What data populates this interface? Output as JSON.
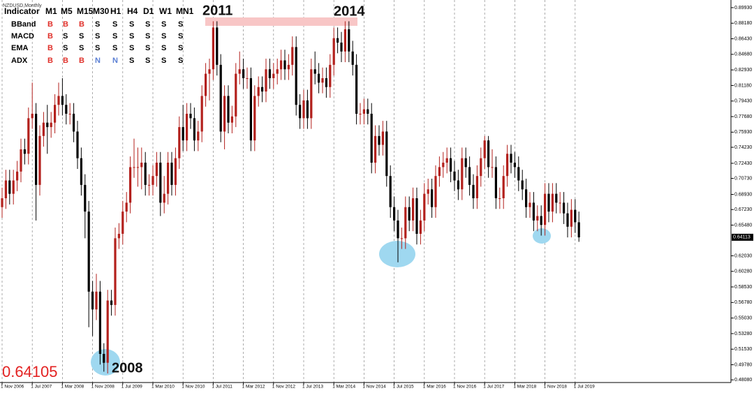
{
  "chart_data": {
    "type": "candlestick",
    "symbol": "NZDUSD,Monthly",
    "annotations": [
      "2011",
      "2014",
      "2008"
    ],
    "bid_label": "0.64105",
    "last_price": 0.64113,
    "up_color": "#b3201c",
    "down_color": "#000000",
    "grid": "vertical",
    "categories": [
      "1 Nov 2006",
      null,
      null,
      null,
      null,
      null,
      null,
      null,
      "1 Jul 2007",
      null,
      null,
      null,
      null,
      null,
      null,
      null,
      "1 Mar 2008",
      null,
      null,
      null,
      null,
      null,
      null,
      null,
      "1 Nov 2008",
      null,
      null,
      null,
      null,
      null,
      null,
      null,
      "1 Jul 2009",
      null,
      null,
      null,
      null,
      null,
      null,
      null,
      "1 Mar 2010",
      null,
      null,
      null,
      null,
      null,
      null,
      null,
      "1 Nov 2010",
      null,
      null,
      null,
      null,
      null,
      null,
      null,
      "1 Jul 2011",
      null,
      null,
      null,
      null,
      null,
      null,
      null,
      "1 Mar 2012",
      null,
      null,
      null,
      null,
      null,
      null,
      null,
      "1 Nov 2012",
      null,
      null,
      null,
      null,
      null,
      null,
      null,
      "1 Jul 2013",
      null,
      null,
      null,
      null,
      null,
      null,
      null,
      "1 Mar 2014",
      null,
      null,
      null,
      null,
      null,
      null,
      null,
      "1 Nov 2014",
      null,
      null,
      null,
      null,
      null,
      null,
      null,
      "1 Jul 2015",
      null,
      null,
      null,
      null,
      null,
      null,
      null,
      "1 Mar 2016",
      null,
      null,
      null,
      null,
      null,
      null,
      null,
      "1 Nov 2016",
      null,
      null,
      null,
      null,
      null,
      null,
      null,
      "1 Jul 2017",
      null,
      null,
      null,
      null,
      null,
      null,
      null,
      "1 Mar 2018",
      null,
      null,
      null,
      null,
      null,
      null,
      null,
      "1 Nov 2018",
      null,
      null,
      null,
      null,
      null,
      null,
      null,
      "1 Jul 2019",
      null
    ],
    "open": [
      0.675,
      0.685,
      0.705,
      0.69,
      0.705,
      0.715,
      0.74,
      0.735,
      0.775,
      0.78,
      0.7,
      0.755,
      0.77,
      0.765,
      0.77,
      0.79,
      0.8,
      0.79,
      0.78,
      0.78,
      0.76,
      0.73,
      0.7,
      0.67,
      0.58,
      0.56,
      0.58,
      0.51,
      0.5,
      0.57,
      0.565,
      0.64,
      0.645,
      0.67,
      0.68,
      0.72,
      0.72,
      0.72,
      0.725,
      0.7,
      0.7,
      0.71,
      0.725,
      0.68,
      0.69,
      0.725,
      0.7,
      0.73,
      0.765,
      0.75,
      0.78,
      0.775,
      0.75,
      0.76,
      0.8,
      0.825,
      0.83,
      0.877,
      0.835,
      0.76,
      0.8,
      0.77,
      0.777,
      0.825,
      0.83,
      0.82,
      0.82,
      0.75,
      0.8,
      0.81,
      0.805,
      0.83,
      0.82,
      0.825,
      0.83,
      0.84,
      0.83,
      0.835,
      0.855,
      0.79,
      0.775,
      0.795,
      0.775,
      0.83,
      0.825,
      0.815,
      0.82,
      0.81,
      0.835,
      0.865,
      0.86,
      0.85,
      0.875,
      0.85,
      0.835,
      0.78,
      0.78,
      0.785,
      0.78,
      0.725,
      0.755,
      0.745,
      0.76,
      0.71,
      0.675,
      0.66,
      0.64,
      0.64,
      0.675,
      0.66,
      0.685,
      0.645,
      0.66,
      0.69,
      0.695,
      0.675,
      0.71,
      0.72,
      0.725,
      0.73,
      0.715,
      0.705,
      0.695,
      0.73,
      0.72,
      0.7,
      0.685,
      0.71,
      0.73,
      0.75,
      0.72,
      0.72,
      0.685,
      0.685,
      0.71,
      0.735,
      0.725,
      0.72,
      0.705,
      0.695,
      0.675,
      0.68,
      0.66,
      0.665,
      0.655,
      0.69,
      0.67,
      0.69,
      0.68,
      0.68,
      0.668,
      0.653,
      0.672,
      0.658
    ],
    "high": [
      0.697,
      0.717,
      0.717,
      0.717,
      0.727,
      0.752,
      0.752,
      0.787,
      0.815,
      0.792,
      0.767,
      0.782,
      0.79,
      0.782,
      0.802,
      0.815,
      0.82,
      0.802,
      0.792,
      0.792,
      0.772,
      0.742,
      0.712,
      0.682,
      0.592,
      0.6,
      0.592,
      0.522,
      0.582,
      0.582,
      0.652,
      0.657,
      0.682,
      0.692,
      0.732,
      0.752,
      0.742,
      0.742,
      0.737,
      0.712,
      0.722,
      0.737,
      0.737,
      0.71,
      0.737,
      0.737,
      0.742,
      0.777,
      0.79,
      0.792,
      0.792,
      0.787,
      0.772,
      0.812,
      0.837,
      0.842,
      0.884,
      0.884,
      0.847,
      0.812,
      0.812,
      0.789,
      0.837,
      0.85,
      0.842,
      0.832,
      0.832,
      0.812,
      0.822,
      0.822,
      0.842,
      0.842,
      0.837,
      0.842,
      0.852,
      0.852,
      0.847,
      0.867,
      0.867,
      0.802,
      0.807,
      0.807,
      0.842,
      0.85,
      0.837,
      0.832,
      0.832,
      0.847,
      0.877,
      0.877,
      0.872,
      0.884,
      0.884,
      0.862,
      0.847,
      0.792,
      0.797,
      0.797,
      0.792,
      0.767,
      0.767,
      0.772,
      0.772,
      0.722,
      0.687,
      0.672,
      0.652,
      0.687,
      0.687,
      0.697,
      0.697,
      0.672,
      0.702,
      0.707,
      0.707,
      0.722,
      0.732,
      0.737,
      0.742,
      0.742,
      0.727,
      0.717,
      0.742,
      0.742,
      0.732,
      0.712,
      0.722,
      0.742,
      0.755,
      0.755,
      0.74,
      0.732,
      0.697,
      0.722,
      0.745,
      0.745,
      0.737,
      0.732,
      0.717,
      0.707,
      0.692,
      0.692,
      0.677,
      0.677,
      0.702,
      0.702,
      0.702,
      0.702,
      0.692,
      0.692,
      0.68,
      0.684,
      0.684,
      0.67
    ],
    "low": [
      0.663,
      0.673,
      0.678,
      0.678,
      0.693,
      0.703,
      0.723,
      0.723,
      0.763,
      0.66,
      0.688,
      0.743,
      0.735,
      0.753,
      0.758,
      0.778,
      0.778,
      0.768,
      0.768,
      0.748,
      0.718,
      0.688,
      0.64,
      0.54,
      0.53,
      0.548,
      0.498,
      0.49,
      0.488,
      0.553,
      0.553,
      0.628,
      0.633,
      0.658,
      0.668,
      0.708,
      0.698,
      0.695,
      0.688,
      0.688,
      0.688,
      0.698,
      0.665,
      0.668,
      0.678,
      0.688,
      0.688,
      0.718,
      0.738,
      0.738,
      0.763,
      0.738,
      0.738,
      0.748,
      0.788,
      0.795,
      0.818,
      0.823,
      0.748,
      0.74,
      0.758,
      0.758,
      0.765,
      0.813,
      0.808,
      0.808,
      0.738,
      0.738,
      0.788,
      0.793,
      0.793,
      0.808,
      0.808,
      0.813,
      0.818,
      0.818,
      0.818,
      0.823,
      0.778,
      0.763,
      0.763,
      0.763,
      0.763,
      0.813,
      0.803,
      0.803,
      0.798,
      0.798,
      0.823,
      0.848,
      0.838,
      0.838,
      0.838,
      0.823,
      0.768,
      0.768,
      0.768,
      0.768,
      0.713,
      0.713,
      0.733,
      0.733,
      0.698,
      0.663,
      0.648,
      0.613,
      0.628,
      0.628,
      0.648,
      0.648,
      0.633,
      0.633,
      0.648,
      0.678,
      0.663,
      0.663,
      0.698,
      0.708,
      0.713,
      0.703,
      0.693,
      0.683,
      0.683,
      0.708,
      0.688,
      0.673,
      0.673,
      0.698,
      0.718,
      0.708,
      0.708,
      0.673,
      0.673,
      0.673,
      0.698,
      0.713,
      0.708,
      0.693,
      0.683,
      0.663,
      0.663,
      0.648,
      0.648,
      0.643,
      0.643,
      0.658,
      0.658,
      0.668,
      0.668,
      0.656,
      0.641,
      0.641,
      0.646,
      0.636
    ],
    "close": [
      0.685,
      0.705,
      0.69,
      0.705,
      0.715,
      0.74,
      0.735,
      0.775,
      0.78,
      0.7,
      0.755,
      0.77,
      0.765,
      0.77,
      0.79,
      0.8,
      0.79,
      0.78,
      0.78,
      0.76,
      0.73,
      0.7,
      0.67,
      0.58,
      0.56,
      0.58,
      0.51,
      0.5,
      0.57,
      0.565,
      0.64,
      0.645,
      0.67,
      0.68,
      0.72,
      0.72,
      0.72,
      0.725,
      0.7,
      0.7,
      0.71,
      0.725,
      0.68,
      0.69,
      0.725,
      0.7,
      0.73,
      0.765,
      0.75,
      0.78,
      0.775,
      0.75,
      0.76,
      0.8,
      0.825,
      0.83,
      0.877,
      0.835,
      0.76,
      0.8,
      0.77,
      0.777,
      0.825,
      0.83,
      0.82,
      0.82,
      0.75,
      0.8,
      0.81,
      0.805,
      0.83,
      0.82,
      0.825,
      0.83,
      0.84,
      0.83,
      0.835,
      0.855,
      0.79,
      0.775,
      0.795,
      0.775,
      0.83,
      0.825,
      0.815,
      0.82,
      0.81,
      0.835,
      0.865,
      0.86,
      0.85,
      0.875,
      0.85,
      0.835,
      0.78,
      0.78,
      0.785,
      0.78,
      0.725,
      0.755,
      0.745,
      0.76,
      0.71,
      0.675,
      0.66,
      0.64,
      0.64,
      0.675,
      0.66,
      0.685,
      0.645,
      0.66,
      0.69,
      0.695,
      0.675,
      0.71,
      0.72,
      0.725,
      0.73,
      0.715,
      0.705,
      0.695,
      0.73,
      0.72,
      0.7,
      0.685,
      0.71,
      0.73,
      0.75,
      0.72,
      0.72,
      0.685,
      0.685,
      0.71,
      0.735,
      0.725,
      0.72,
      0.705,
      0.695,
      0.675,
      0.68,
      0.66,
      0.665,
      0.655,
      0.69,
      0.67,
      0.69,
      0.68,
      0.68,
      0.668,
      0.653,
      0.672,
      0.658,
      0.641
    ],
    "ylim": [
      0.4778,
      0.9079
    ],
    "yticks": [
      {
        "value": 0.8993,
        "label": "0.89930"
      },
      {
        "value": 0.8818,
        "label": "0.88180"
      },
      {
        "value": 0.8643,
        "label": "0.86430"
      },
      {
        "value": 0.8468,
        "label": "0.84680"
      },
      {
        "value": 0.8293,
        "label": "0.82930"
      },
      {
        "value": 0.8118,
        "label": "0.81180"
      },
      {
        "value": 0.7943,
        "label": "0.79430"
      },
      {
        "value": 0.7768,
        "label": "0.77680"
      },
      {
        "value": 0.7593,
        "label": "0.75930"
      },
      {
        "value": 0.7423,
        "label": "0.74230"
      },
      {
        "value": 0.7243,
        "label": "0.72430"
      },
      {
        "value": 0.7073,
        "label": "0.70730"
      },
      {
        "value": 0.6893,
        "label": "0.68930"
      },
      {
        "value": 0.6723,
        "label": "0.67230"
      },
      {
        "value": 0.6548,
        "label": "0.65480"
      },
      {
        "value": 0.6203,
        "label": "0.62030"
      },
      {
        "value": 0.6028,
        "label": "0.60280"
      },
      {
        "value": 0.5853,
        "label": "0.58530"
      },
      {
        "value": 0.5678,
        "label": "0.56780"
      },
      {
        "value": 0.5503,
        "label": "0.55030"
      },
      {
        "value": 0.5328,
        "label": "0.53280"
      },
      {
        "value": 0.5153,
        "label": "0.51530"
      },
      {
        "value": 0.4978,
        "label": "0.49780"
      },
      {
        "value": 0.4808,
        "label": "0.48080"
      }
    ]
  },
  "indicator_table": {
    "header": [
      "Indicator",
      "M1",
      "M5",
      "M15",
      "M30",
      "H1",
      "H4",
      "D1",
      "W1",
      "MN1"
    ],
    "rows": [
      [
        "BBand",
        "B",
        "B",
        "B",
        "S",
        "S",
        "S",
        "S",
        "S",
        "S"
      ],
      [
        "MACD",
        "B",
        "S",
        "S",
        "S",
        "S",
        "S",
        "S",
        "S",
        "S"
      ],
      [
        "EMA",
        "B",
        "S",
        "S",
        "S",
        "S",
        "S",
        "S",
        "S",
        "S"
      ],
      [
        "ADX",
        "B",
        "B",
        "B",
        "N",
        "N",
        "S",
        "S",
        "S",
        "S"
      ]
    ],
    "colors": {
      "B": "#e0302a",
      "N": "#5b7fd4",
      "S": "#000000"
    }
  }
}
